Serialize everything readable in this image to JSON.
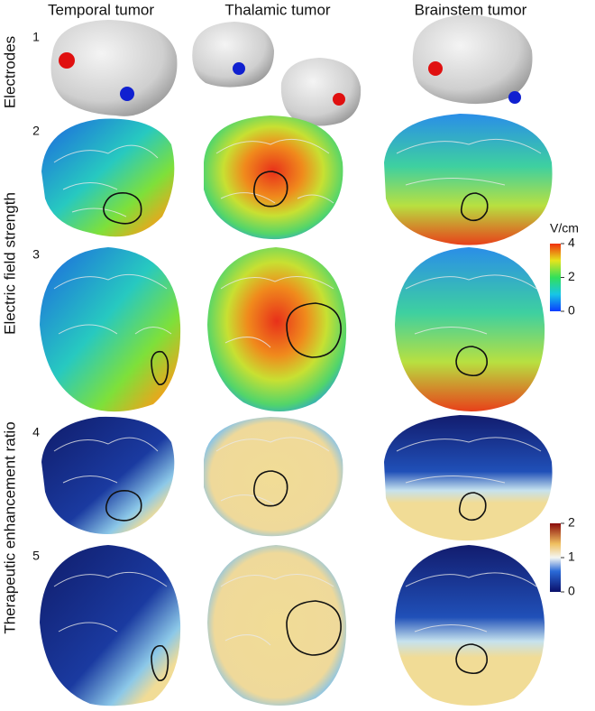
{
  "columns": [
    "Temporal tumor",
    "Thalamic tumor",
    "Brainstem tumor"
  ],
  "rows": [
    "1",
    "2",
    "3",
    "4",
    "5"
  ],
  "side_labels": [
    "Electrodes",
    "Electric field strength",
    "Therapeutic enhancement ratio"
  ],
  "colorbars": [
    {
      "unit": "V/cm",
      "lim": [
        0,
        4
      ],
      "ticks": [
        0,
        2,
        4
      ]
    },
    {
      "lim": [
        0,
        2
      ],
      "ticks": [
        0,
        1,
        2
      ]
    }
  ]
}
